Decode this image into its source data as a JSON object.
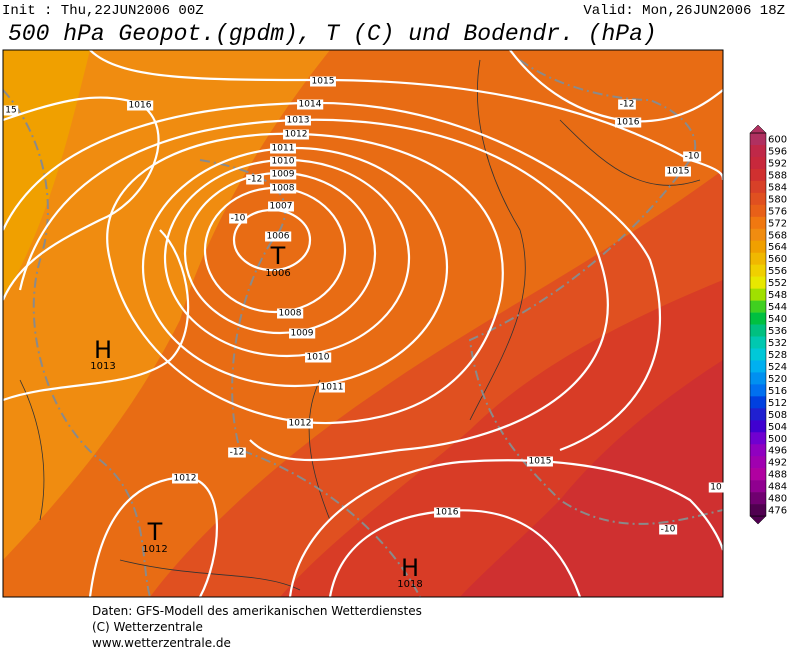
{
  "header": {
    "init": "Init : Thu,22JUN2006 00Z",
    "valid": "Valid: Mon,26JUN2006 18Z",
    "title": "500 hPa Geopot.(gpdm), T (C) und Bodendr. (hPa)"
  },
  "map": {
    "isobar_labels": [
      1015,
      1016,
      1014,
      1013,
      1012,
      1011,
      1010,
      1009,
      1008,
      1007,
      1006,
      1008,
      1009,
      1010,
      1011,
      1012,
      1012,
      1015,
      1016,
      1016,
      1015,
      15,
      10
    ],
    "temperature_labels": [
      -12,
      -10,
      -12,
      -10,
      -12,
      -10
    ],
    "centers": [
      {
        "symbol": "T",
        "value": 1006
      },
      {
        "symbol": "H",
        "value": 1013
      },
      {
        "symbol": "T",
        "value": 1012
      },
      {
        "symbol": "H",
        "value": 1018
      }
    ]
  },
  "legend": {
    "levels": [
      600,
      596,
      592,
      588,
      584,
      580,
      576,
      572,
      568,
      564,
      560,
      556,
      552,
      548,
      544,
      540,
      536,
      532,
      528,
      524,
      520,
      516,
      512,
      508,
      504,
      500,
      496,
      492,
      488,
      484,
      480,
      476
    ],
    "colors": [
      "#b03060",
      "#c02848",
      "#c8283c",
      "#d03030",
      "#d84028",
      "#e05020",
      "#e86018",
      "#f07810",
      "#f08c10",
      "#f0a000",
      "#f0b800",
      "#f0d000",
      "#e8e800",
      "#a0e000",
      "#40d020",
      "#00c040",
      "#00c080",
      "#00c8b0",
      "#00c8d8",
      "#00b0f0",
      "#0090f0",
      "#0070f0",
      "#0040e0",
      "#2020d0",
      "#4000d0",
      "#7000d0",
      "#9000c0",
      "#a000b0",
      "#b000a0",
      "#900090",
      "#700070",
      "#500050"
    ]
  },
  "footer": {
    "lines": [
      "Daten: GFS-Modell des amerikanischen Wetterdienstes",
      "(C) Wetterzentrale",
      "www.wetterzentrale.de"
    ]
  }
}
